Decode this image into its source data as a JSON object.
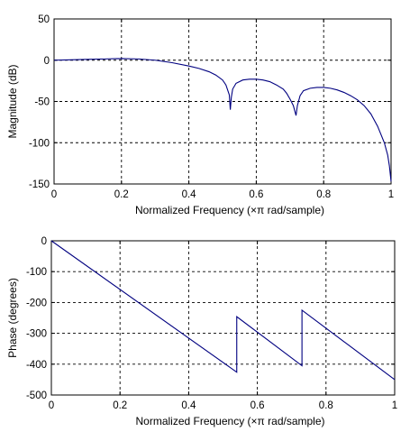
{
  "chart_data": [
    {
      "type": "line",
      "title": "",
      "xlabel": "Normalized Frequency  (×π rad/sample)",
      "ylabel": "Magnitude (dB)",
      "xlim": [
        0,
        1
      ],
      "ylim": [
        -150,
        50
      ],
      "xticks": [
        "0",
        "0.2",
        "0.4",
        "0.6",
        "0.8",
        "1"
      ],
      "yticks": [
        "50",
        "0",
        "-50",
        "-100",
        "-150"
      ],
      "xtick_values": [
        0,
        0.2,
        0.4,
        0.6,
        0.8,
        1
      ],
      "ytick_values": [
        50,
        0,
        -50,
        -100,
        -150
      ],
      "grid": true,
      "line_color": "#000080",
      "series": [
        {
          "x": [
            0,
            0.05,
            0.1,
            0.15,
            0.2,
            0.25,
            0.3,
            0.35,
            0.4,
            0.43,
            0.46,
            0.48,
            0.5,
            0.51,
            0.52,
            0.523,
            0.526,
            0.53,
            0.54,
            0.56,
            0.58,
            0.6,
            0.62,
            0.64,
            0.66,
            0.68,
            0.69,
            0.7,
            0.71,
            0.718,
            0.722,
            0.73,
            0.74,
            0.76,
            0.78,
            0.8,
            0.82,
            0.84,
            0.86,
            0.88,
            0.9,
            0.92,
            0.94,
            0.96,
            0.97,
            0.98,
            0.99,
            0.995,
            1.0
          ],
          "y": [
            0,
            0.5,
            1,
            1.5,
            2,
            1.5,
            0,
            -3,
            -7,
            -10,
            -14,
            -18,
            -24,
            -30,
            -42,
            -60,
            -45,
            -35,
            -28,
            -24,
            -23,
            -23,
            -24,
            -26,
            -30,
            -35,
            -40,
            -47,
            -55,
            -67,
            -55,
            -43,
            -37,
            -34,
            -33,
            -33,
            -34,
            -36,
            -39,
            -43,
            -48,
            -55,
            -65,
            -80,
            -90,
            -100,
            -115,
            -128,
            -147
          ]
        }
      ]
    },
    {
      "type": "line",
      "title": "",
      "xlabel": "Normalized Frequency  (×π rad/sample)",
      "ylabel": "Phase (degrees)",
      "xlim": [
        0,
        1
      ],
      "ylim": [
        -500,
        0
      ],
      "xticks": [
        "0",
        "0.2",
        "0.4",
        "0.6",
        "0.8",
        "1"
      ],
      "yticks": [
        "0",
        "-100",
        "-200",
        "-300",
        "-400",
        "-500"
      ],
      "xtick_values": [
        0,
        0.2,
        0.4,
        0.6,
        0.8,
        1
      ],
      "ytick_values": [
        0,
        -100,
        -200,
        -300,
        -400,
        -500
      ],
      "grid": true,
      "line_color": "#000080",
      "series": [
        {
          "x": [
            0,
            0.54,
            0.54,
            0.73,
            0.73,
            1.0
          ],
          "y": [
            0,
            -426,
            -246,
            -405,
            -225,
            -450
          ]
        }
      ]
    }
  ]
}
